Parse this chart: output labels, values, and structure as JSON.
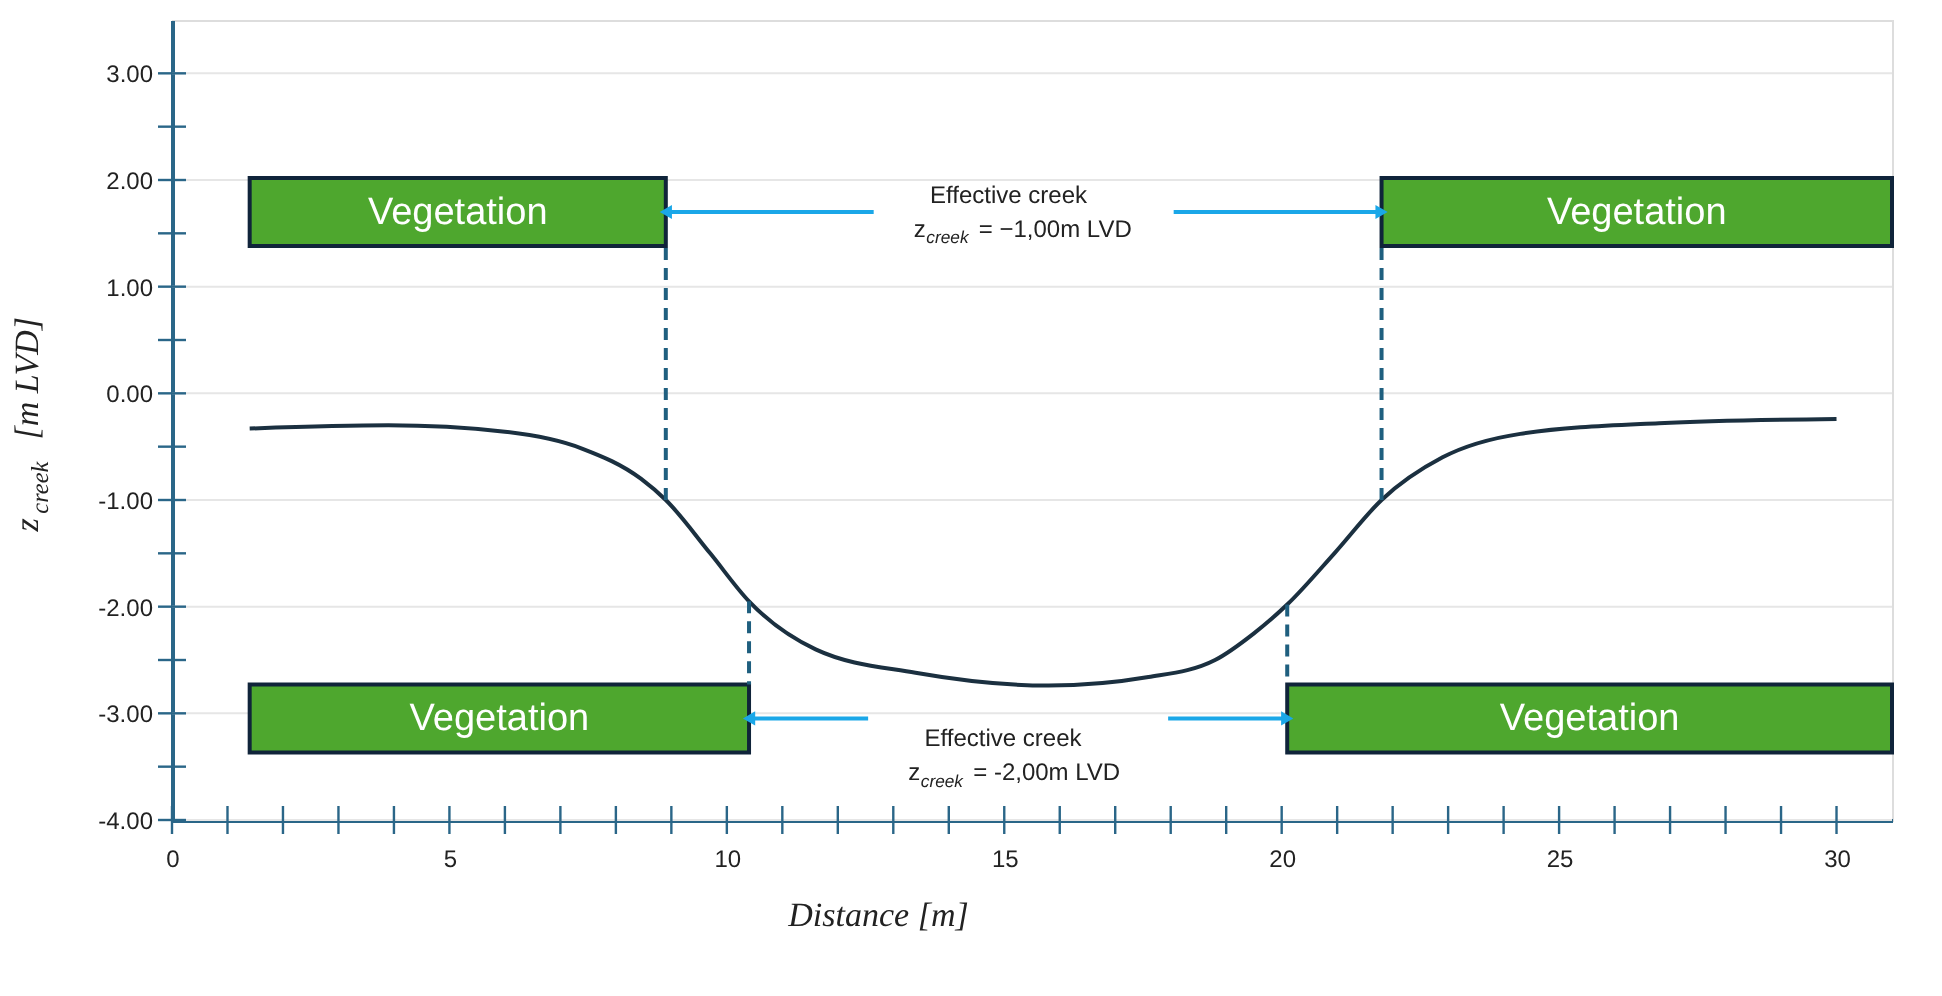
{
  "chart_data": {
    "type": "line",
    "xlabel": "Distance [m]",
    "ylabel": "z$_{creek}$ [m LVD]",
    "x": [
      1.4,
      3.9,
      6.0,
      7.4,
      8.45,
      8.9,
      9.7,
      10.4,
      11.6,
      13.4,
      15.8,
      17.6,
      18.8,
      19.5,
      20.1,
      20.95,
      21.8,
      22.9,
      24.3,
      26.8,
      30.0
    ],
    "series": [
      {
        "color": "#1b3040",
        "values": [
          -0.33,
          -0.3,
          -0.36,
          -0.52,
          -0.8,
          -1.0,
          -1.5,
          -1.95,
          -2.4,
          -2.62,
          -2.74,
          -2.66,
          -2.5,
          -2.25,
          -1.98,
          -1.5,
          -1.0,
          -0.6,
          -0.38,
          -0.28,
          -0.24
        ]
      }
    ],
    "xlim": [
      0,
      31
    ],
    "xticks": [
      0,
      {
        "value": 1,
        "label": null
      },
      {
        "value": 2,
        "label": null
      },
      {
        "value": 3,
        "label": null
      },
      {
        "value": 4,
        "label": null
      },
      5,
      {
        "value": 6,
        "label": null
      },
      {
        "value": 7,
        "label": null
      },
      {
        "value": 8,
        "label": null
      },
      {
        "value": 9,
        "label": null
      },
      10,
      {
        "value": 11,
        "label": null
      },
      {
        "value": 12,
        "label": null
      },
      {
        "value": 13,
        "label": null
      },
      {
        "value": 14,
        "label": null
      },
      15,
      {
        "value": 16,
        "label": null
      },
      {
        "value": 17,
        "label": null
      },
      {
        "value": 18,
        "label": null
      },
      {
        "value": 19,
        "label": null
      },
      20,
      {
        "value": 21,
        "label": null
      },
      {
        "value": 22,
        "label": null
      },
      {
        "value": 23,
        "label": null
      },
      {
        "value": 24,
        "label": null
      },
      25,
      {
        "value": 26,
        "label": null
      },
      {
        "value": 27,
        "label": null
      },
      {
        "value": 28,
        "label": null
      },
      {
        "value": 29,
        "label": null
      },
      30
    ],
    "ylim": [
      -4,
      3.5
    ],
    "yticks": [
      {
        "value": -4,
        "label": "-4.00"
      },
      {
        "value": -3.5,
        "label": null
      },
      {
        "value": -3,
        "label": "-3.00"
      },
      {
        "value": -2.5,
        "label": null
      },
      {
        "value": -2,
        "label": "-2.00"
      },
      {
        "value": -1.5,
        "label": null
      },
      {
        "value": -1,
        "label": "-1.00"
      },
      {
        "value": -0.5,
        "label": null
      },
      {
        "value": 0,
        "label": "0.00"
      },
      {
        "value": 0.5,
        "label": null
      },
      {
        "value": 1,
        "label": "1.00"
      },
      {
        "value": 1.5,
        "label": null
      },
      {
        "value": 2,
        "label": "2.00"
      },
      {
        "value": 2.5,
        "label": null
      },
      {
        "value": 3,
        "label": "3.00"
      }
    ],
    "grid": "y",
    "line_style": "solid",
    "marker": "none",
    "bands": [
      {
        "axis": "x",
        "from": 1.4,
        "to": 8.9,
        "label": "Vegetation",
        "color": "#4ea72e"
      },
      {
        "axis": "x",
        "from": 21.8,
        "to": 31,
        "label": "Vegetation",
        "color": "#4ea72e"
      },
      {
        "axis": "x",
        "from": 1.4,
        "to": 10.4,
        "label": "Vegetation",
        "color": "#4ea72e"
      },
      {
        "axis": "x",
        "from": 20.1,
        "to": 31,
        "label": "Vegetation",
        "color": "#4ea72e"
      }
    ],
    "ref_lines": [
      {
        "axis": "x",
        "value": 8.9,
        "color": "#1f5f7f",
        "line_style": "dashed"
      },
      {
        "axis": "x",
        "value": 21.8,
        "color": "#1f5f7f",
        "line_style": "dashed"
      },
      {
        "axis": "x",
        "value": 10.4,
        "color": "#1f5f7f",
        "line_style": "dashed"
      },
      {
        "axis": "x",
        "value": 20.1,
        "color": "#1f5f7f",
        "line_style": "dashed"
      }
    ],
    "annotations": [
      "Effective creek\nz$_{creek}$ = −1,00m LVD",
      "Effective creek\nz$_{creek}$ = -2,00m LVD"
    ]
  }
}
